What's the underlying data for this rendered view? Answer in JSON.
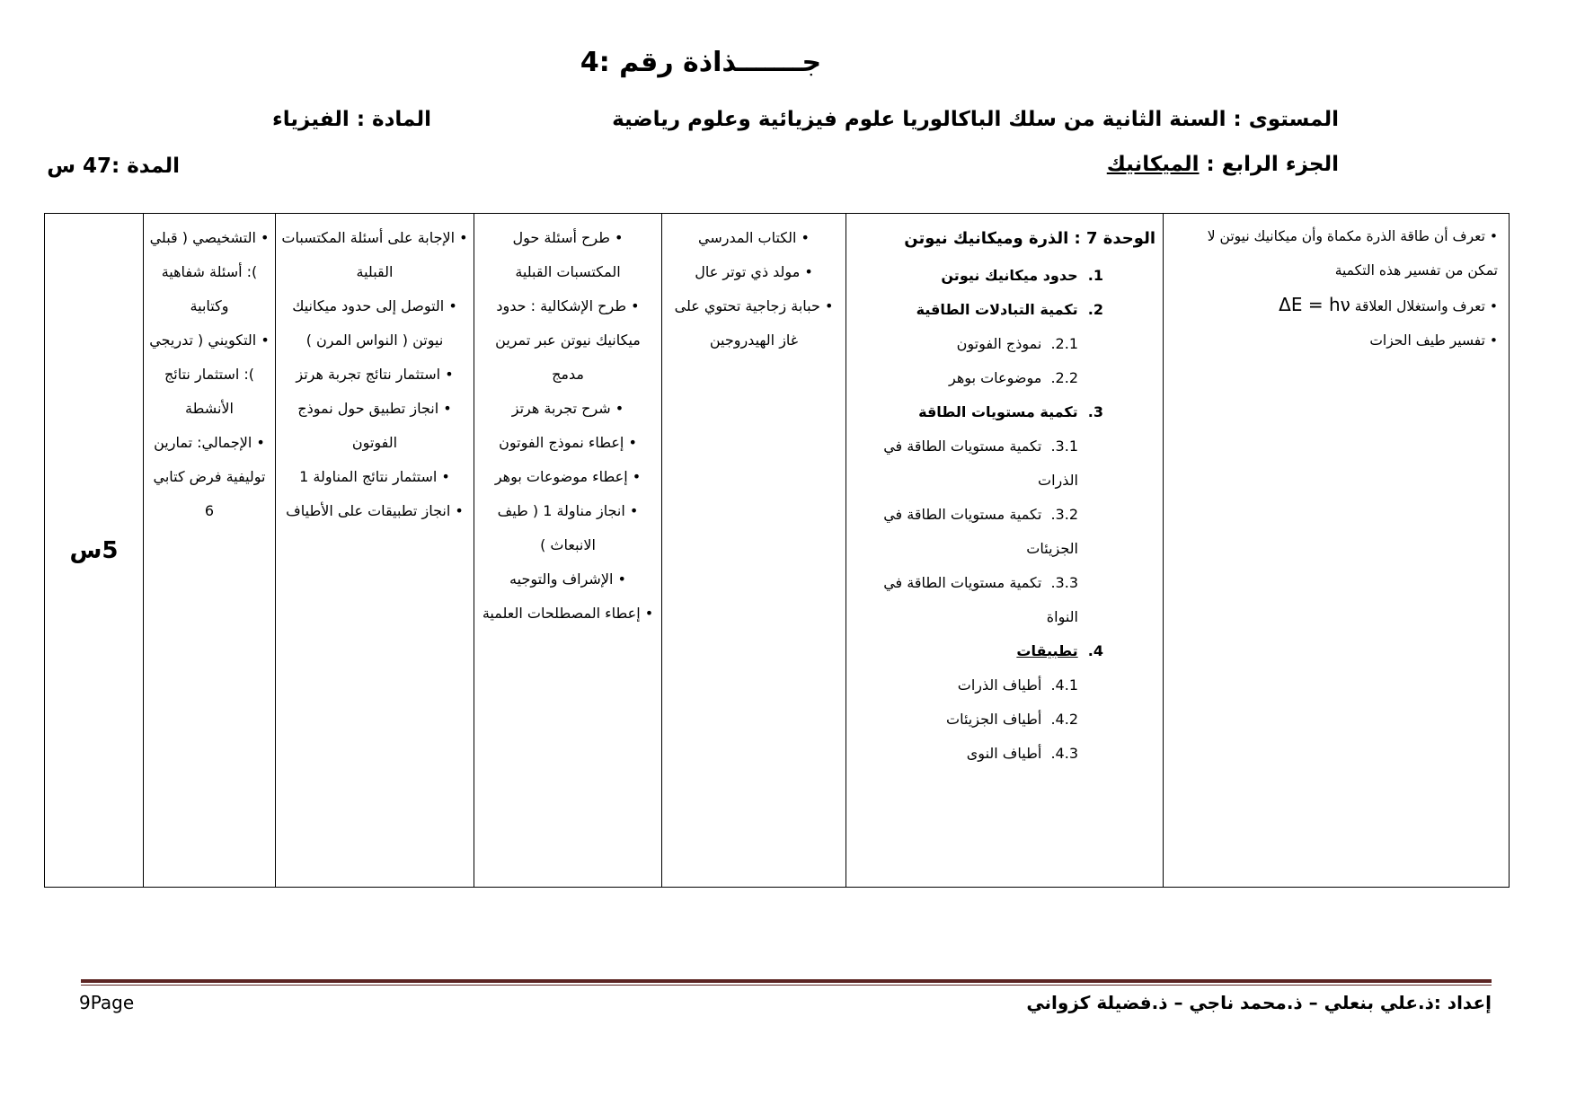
{
  "title": "جـــــــذاذة رقم :4",
  "header": {
    "level": "المستوى : السنة الثانية من سلك الباكالوريا علوم فيزيائية وعلوم رياضية",
    "subject": "المادة : الفيزياء",
    "part_label": "الجزء الرابع : ",
    "part_value": "الميكانيك",
    "duration": "المدة :47 س"
  },
  "table": {
    "objectives": {
      "items": [
        {
          "bullet": true,
          "text": "تعرف أن طاقة الذرة مكماة وأن ميكانيك نيوتن لا تمكن من تفسير هذه التكمية"
        },
        {
          "bullet": true,
          "text": "تعرف واستغلال العلاقة",
          "formula": "ΔE = hν"
        },
        {
          "bullet": true,
          "text": "تفسير طيف الحزات"
        }
      ]
    },
    "unit": {
      "title": "الوحدة 7 : الذرة وميكانيك نيوتن",
      "items": [
        {
          "num": "1",
          "text": "حدود ميكانيك نيوتن",
          "cls": "lvl1"
        },
        {
          "num": "2",
          "text": "تكمية التبادلات الطاقية",
          "cls": "lvl1"
        },
        {
          "num": "2.1",
          "text": "نموذج الفوتون",
          "cls": "lvl2"
        },
        {
          "num": "2.2",
          "text": "موضوعات بوهر",
          "cls": "lvl2"
        },
        {
          "num": "3",
          "text": "تكمية مستويات الطاقة",
          "cls": "lvl1"
        },
        {
          "num": "3.1",
          "text": "تكمية مستويات الطاقة في الذرات",
          "cls": "lvl2"
        },
        {
          "num": "3.2",
          "text": "تكمية مستويات الطاقة في الجزيئات",
          "cls": "lvl2"
        },
        {
          "num": "3.3",
          "text": "تكمية مستويات الطاقة في النواة",
          "cls": "lvl2"
        },
        {
          "num": "4",
          "text": "تطبيقات",
          "cls": "lvl1",
          "underline": true
        },
        {
          "num": "4.1",
          "text": "أطياف الذرات",
          "cls": "lvl2"
        },
        {
          "num": "4.2",
          "text": "أطياف الجزيئات",
          "cls": "lvl2"
        },
        {
          "num": "4.3",
          "text": "أطياف النوى",
          "cls": "lvl2"
        }
      ]
    },
    "means": {
      "items": [
        {
          "bullet": true,
          "text": "الكتاب المدرسي"
        },
        {
          "bullet": true,
          "text": "مولد ذي توتر عال"
        },
        {
          "bullet": true,
          "text": "حبابة زجاجية تحتوي على غاز الهيدروجين"
        }
      ]
    },
    "teacher_activities": {
      "items": [
        {
          "bullet": true,
          "text": "طرح أسئلة حول المكتسبات القبلية"
        },
        {
          "bullet": true,
          "text": "طرح الإشكالية : حدود ميكانيك نيوتن عبر تمرين مدمج"
        },
        {
          "bullet": true,
          "text": "شرح تجربة هرتز"
        },
        {
          "bullet": true,
          "text": "إعطاء نموذج الفوتون"
        },
        {
          "bullet": true,
          "text": "إعطاء موضوعات بوهر"
        },
        {
          "bullet": true,
          "text": "انجاز مناولة 1 ( طيف الانبعاث )"
        },
        {
          "bullet": true,
          "text": "الإشراف والتوجيه"
        },
        {
          "bullet": true,
          "text": "إعطاء المصطلحات العلمية"
        }
      ]
    },
    "learner_activities": {
      "items": [
        {
          "bullet": true,
          "text": "الإجابة على أسئلة المكتسبات القبلية"
        },
        {
          "bullet": true,
          "text": "التوصل إلى حدود ميكانيك نيوتن ( النواس المرن )"
        },
        {
          "bullet": true,
          "text": "استثمار نتائج تجربة هرتز"
        },
        {
          "bullet": true,
          "text": "انجاز تطبيق حول نموذج الفوتون"
        },
        {
          "bullet": true,
          "text": "استثمار نتائج المناولة 1"
        },
        {
          "bullet": true,
          "text": "انجاز تطبيقات على الأطياف"
        }
      ]
    },
    "assessment": {
      "items": [
        {
          "bullet": true,
          "text": "التشخيصي ( قبلي ): أسئلة شفاهية وكتابية"
        },
        {
          "bullet": true,
          "text": "التكويني ( تدريجي ): استثمار نتائج الأنشطة",
          "cls": "gap"
        },
        {
          "bullet": true,
          "text": "الإجمالي: تمارين توليفية فرض كتابي 6",
          "cls": "gap"
        }
      ]
    },
    "duration": "5س"
  },
  "footer": {
    "prepared_by": "إعداد :ذ.علي بنعلي – ذ.محمد ناجي – ذ.فضيلة كزواني",
    "page": "9Page"
  },
  "colors": {
    "footer_rule": "#5b2422"
  }
}
